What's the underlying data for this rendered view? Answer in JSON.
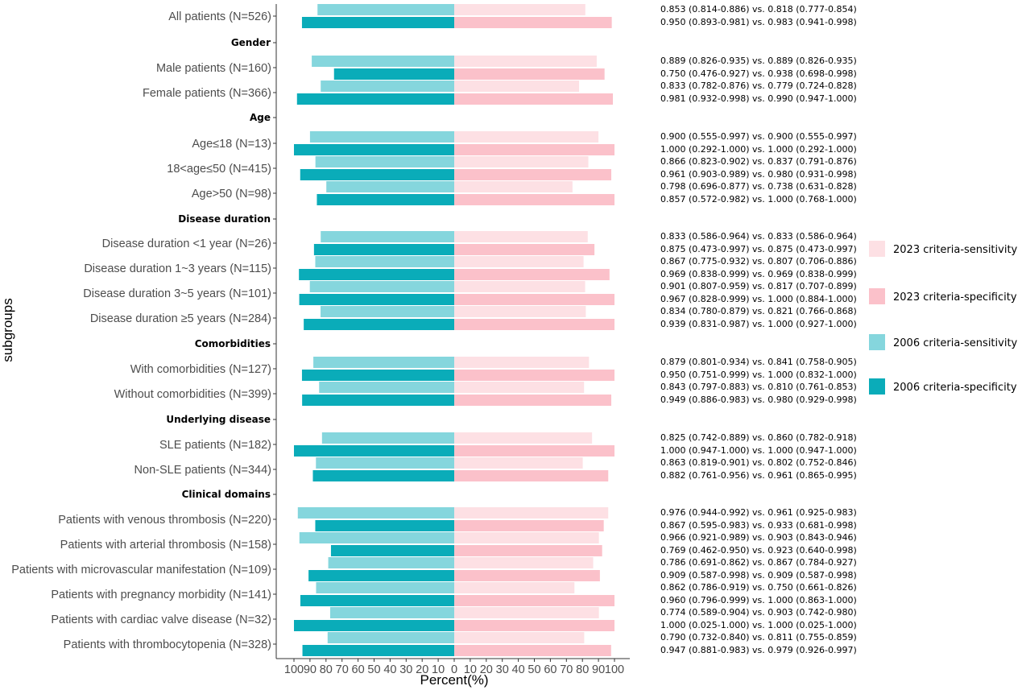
{
  "chart_data": {
    "type": "bar",
    "orientation": "horizontal-butterfly",
    "xlabel": "Percent(%)",
    "ylabel": "subgroups",
    "xlim": [
      -100,
      100
    ],
    "x_ticks": [
      "100",
      "90",
      "80",
      "70",
      "60",
      "50",
      "40",
      "30",
      "20",
      "10",
      "0",
      "10",
      "20",
      "30",
      "40",
      "50",
      "60",
      "70",
      "80",
      "90",
      "100"
    ],
    "grid": false,
    "legend_position": "right",
    "legend": [
      {
        "name": "2023 criteria-sensitivity",
        "color": "#fde0e4"
      },
      {
        "name": "2023 criteria-specificity",
        "color": "#fbc1ca"
      },
      {
        "name": "2006 criteria-sensitivity",
        "color": "#85d6dd"
      },
      {
        "name": "2006 criteria-specificity",
        "color": "#0aacb9"
      }
    ],
    "rows": [
      {
        "label": "All patients (N=526)",
        "sens2006": 85.3,
        "spec2006": 95.0,
        "sens2023": 81.8,
        "spec2023": 98.3,
        "ann_sens": "0.853 (0.814-0.886) vs. 0.818 (0.777-0.854)",
        "ann_spec": "0.950 (0.893-0.981) vs. 0.983 (0.941-0.998)"
      },
      {
        "header": "Gender"
      },
      {
        "label": "Male patients (N=160)",
        "sens2006": 88.9,
        "spec2006": 75.0,
        "sens2023": 88.9,
        "spec2023": 93.8,
        "ann_sens": "0.889 (0.826-0.935) vs. 0.889 (0.826-0.935)",
        "ann_spec": "0.750 (0.476-0.927) vs. 0.938 (0.698-0.998)"
      },
      {
        "label": "Female patients (N=366)",
        "sens2006": 83.3,
        "spec2006": 98.1,
        "sens2023": 77.9,
        "spec2023": 99.0,
        "ann_sens": "0.833 (0.782-0.876) vs. 0.779 (0.724-0.828)",
        "ann_spec": "0.981 (0.932-0.998) vs. 0.990 (0.947-1.000)"
      },
      {
        "header": "Age"
      },
      {
        "label": "Age≤18 (N=13)",
        "sens2006": 90.0,
        "spec2006": 100.0,
        "sens2023": 90.0,
        "spec2023": 100.0,
        "ann_sens": "0.900 (0.555-0.997) vs. 0.900 (0.555-0.997)",
        "ann_spec": "1.000 (0.292-1.000) vs. 1.000 (0.292-1.000)"
      },
      {
        "label": "18<age≤50 (N=415)",
        "sens2006": 86.6,
        "spec2006": 96.1,
        "sens2023": 83.7,
        "spec2023": 98.0,
        "ann_sens": "0.866 (0.823-0.902) vs. 0.837 (0.791-0.876)",
        "ann_spec": "0.961 (0.903-0.989) vs. 0.980 (0.931-0.998)"
      },
      {
        "label": "Age>50 (N=98)",
        "sens2006": 79.8,
        "spec2006": 85.7,
        "sens2023": 73.8,
        "spec2023": 100.0,
        "ann_sens": "0.798 (0.696-0.877) vs. 0.738 (0.631-0.828)",
        "ann_spec": "0.857 (0.572-0.982) vs. 1.000 (0.768-1.000)"
      },
      {
        "header": "Disease duration"
      },
      {
        "label": "Disease duration <1 year (N=26)",
        "sens2006": 83.3,
        "spec2006": 87.5,
        "sens2023": 83.3,
        "spec2023": 87.5,
        "ann_sens": "0.833 (0.586-0.964) vs. 0.833 (0.586-0.964)",
        "ann_spec": "0.875 (0.473-0.997) vs. 0.875 (0.473-0.997)"
      },
      {
        "label": "Disease duration 1~3 years (N=115)",
        "sens2006": 86.7,
        "spec2006": 96.9,
        "sens2023": 80.7,
        "spec2023": 96.9,
        "ann_sens": "0.867 (0.775-0.932) vs. 0.807 (0.706-0.886)",
        "ann_spec": "0.969 (0.838-0.999) vs. 0.969 (0.838-0.999)"
      },
      {
        "label": "Disease duration 3~5 years (N=101)",
        "sens2006": 90.1,
        "spec2006": 96.7,
        "sens2023": 81.7,
        "spec2023": 100.0,
        "ann_sens": "0.901 (0.807-0.959) vs. 0.817 (0.707-0.899)",
        "ann_spec": "0.967 (0.828-0.999) vs. 1.000 (0.884-1.000)"
      },
      {
        "label": "Disease duration ≥5 years (N=284)",
        "sens2006": 83.4,
        "spec2006": 93.9,
        "sens2023": 82.1,
        "spec2023": 100.0,
        "ann_sens": "0.834 (0.780-0.879) vs. 0.821 (0.766-0.868)",
        "ann_spec": "0.939 (0.831-0.987) vs. 1.000 (0.927-1.000)"
      },
      {
        "header": "Comorbidities"
      },
      {
        "label": "With comorbidities (N=127)",
        "sens2006": 87.9,
        "spec2006": 95.0,
        "sens2023": 84.1,
        "spec2023": 100.0,
        "ann_sens": "0.879 (0.801-0.934) vs. 0.841 (0.758-0.905)",
        "ann_spec": "0.950 (0.751-0.999) vs. 1.000 (0.832-1.000)"
      },
      {
        "label": "Without comorbidities (N=399)",
        "sens2006": 84.3,
        "spec2006": 94.9,
        "sens2023": 81.0,
        "spec2023": 98.0,
        "ann_sens": "0.843 (0.797-0.883) vs. 0.810 (0.761-0.853)",
        "ann_spec": "0.949 (0.886-0.983) vs. 0.980 (0.929-0.998)"
      },
      {
        "header": "Underlying disease"
      },
      {
        "label": "SLE patients (N=182)",
        "sens2006": 82.5,
        "spec2006": 100.0,
        "sens2023": 86.0,
        "spec2023": 100.0,
        "ann_sens": "0.825 (0.742-0.889) vs. 0.860 (0.782-0.918)",
        "ann_spec": "1.000 (0.947-1.000) vs. 1.000 (0.947-1.000)"
      },
      {
        "label": "Non-SLE patients (N=344)",
        "sens2006": 86.3,
        "spec2006": 88.2,
        "sens2023": 80.2,
        "spec2023": 96.1,
        "ann_sens": "0.863 (0.819-0.901) vs. 0.802 (0.752-0.846)",
        "ann_spec": "0.882 (0.761-0.956) vs. 0.961 (0.865-0.995)"
      },
      {
        "header": "Clinical domains"
      },
      {
        "label": "Patients with venous thrombosis (N=220)",
        "sens2006": 97.6,
        "spec2006": 86.7,
        "sens2023": 96.1,
        "spec2023": 93.3,
        "ann_sens": "0.976 (0.944-0.992) vs. 0.961 (0.925-0.983)",
        "ann_spec": "0.867 (0.595-0.983) vs. 0.933 (0.681-0.998)"
      },
      {
        "label": "Patients with arterial thrombosis (N=158)",
        "sens2006": 96.6,
        "spec2006": 76.9,
        "sens2023": 90.3,
        "spec2023": 92.3,
        "ann_sens": "0.966 (0.921-0.989) vs. 0.903 (0.843-0.946)",
        "ann_spec": "0.769 (0.462-0.950) vs. 0.923 (0.640-0.998)"
      },
      {
        "label": "Patients with microvascular manifestation (N=109)",
        "sens2006": 78.6,
        "spec2006": 90.9,
        "sens2023": 86.7,
        "spec2023": 90.9,
        "ann_sens": "0.786 (0.691-0.862) vs. 0.867 (0.784-0.927)",
        "ann_spec": "0.909 (0.587-0.998) vs. 0.909 (0.587-0.998)"
      },
      {
        "label": "Patients with pregnancy morbidity (N=141)",
        "sens2006": 86.2,
        "spec2006": 96.0,
        "sens2023": 75.0,
        "spec2023": 100.0,
        "ann_sens": "0.862 (0.786-0.919) vs. 0.750 (0.661-0.826)",
        "ann_spec": "0.960 (0.796-0.999) vs. 1.000 (0.863-1.000)"
      },
      {
        "label": "Patients with cardiac valve disease (N=32)",
        "sens2006": 77.4,
        "spec2006": 100.0,
        "sens2023": 90.3,
        "spec2023": 100.0,
        "ann_sens": "0.774 (0.589-0.904) vs. 0.903 (0.742-0.980)",
        "ann_spec": "1.000 (0.025-1.000) vs. 1.000 (0.025-1.000)"
      },
      {
        "label": "Patients with thrombocytopenia (N=328)",
        "sens2006": 79.0,
        "spec2006": 94.7,
        "sens2023": 81.1,
        "spec2023": 97.9,
        "ann_sens": "0.790 (0.732-0.840) vs. 0.811 (0.755-0.859)",
        "ann_spec": "0.947 (0.881-0.983) vs. 0.979 (0.926-0.997)"
      }
    ]
  }
}
